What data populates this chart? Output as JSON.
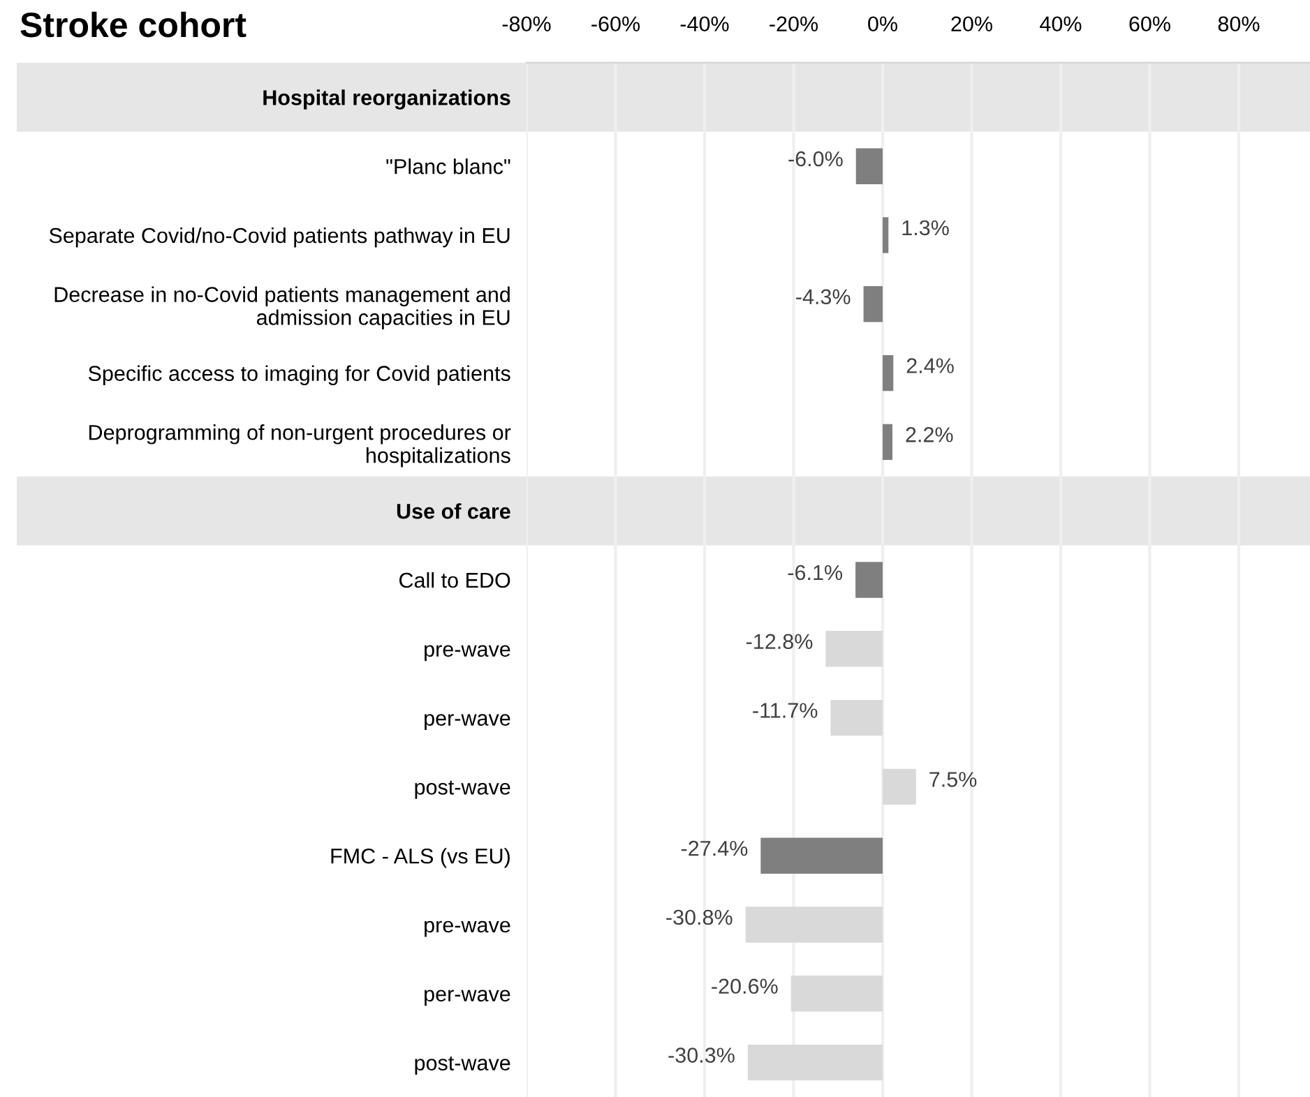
{
  "chart_data": {
    "type": "bar",
    "orientation": "horizontal",
    "title": "Stroke cohort",
    "categories": [
      "Hospital reorganizations",
      "\"Planc blanc\"",
      "Separate Covid/no-Covid patients pathway in EU",
      "Decrease in no-Covid patients management and\nadmission capacities in EU",
      "Specific access to imaging for Covid patients",
      "Deprogramming of non-urgent procedures or\nhospitalizations",
      "Use of care",
      "Call to EDO",
      "pre-wave",
      "per-wave",
      "post-wave",
      "FMC - ALS (vs EU)",
      "pre-wave",
      "per-wave",
      "post-wave"
    ],
    "values": [
      null,
      -6.0,
      1.3,
      -4.3,
      2.4,
      2.2,
      null,
      -6.1,
      -12.8,
      -11.7,
      7.5,
      -27.4,
      -30.8,
      -20.6,
      -30.3
    ],
    "value_labels": [
      null,
      "-6.0%",
      "1.3%",
      "-4.3%",
      "2.4%",
      "2.2%",
      null,
      "-6.1%",
      "-12.8%",
      "-11.7%",
      "7.5%",
      "-27.4%",
      "-30.8%",
      "-20.6%",
      "-30.3%"
    ],
    "colors": [
      null,
      "#7f7f7f",
      "#7f7f7f",
      "#7f7f7f",
      "#7f7f7f",
      "#7f7f7f",
      null,
      "#7f7f7f",
      "#d9d9d9",
      "#d9d9d9",
      "#d9d9d9",
      "#7f7f7f",
      "#d9d9d9",
      "#d9d9d9",
      "#d9d9d9"
    ],
    "xlim": [
      -80,
      96
    ],
    "xticks": [
      {
        "value": -80,
        "label": "-80%"
      },
      {
        "value": -60,
        "label": "-60%"
      },
      {
        "value": -40,
        "label": "-40%"
      },
      {
        "value": -20,
        "label": "-20%"
      },
      {
        "value": 0,
        "label": "0%"
      },
      {
        "value": 20,
        "label": "20%"
      },
      {
        "value": 40,
        "label": "40%"
      },
      {
        "value": 60,
        "label": "60%"
      },
      {
        "value": 80,
        "label": "80%"
      }
    ],
    "grid": "x"
  }
}
